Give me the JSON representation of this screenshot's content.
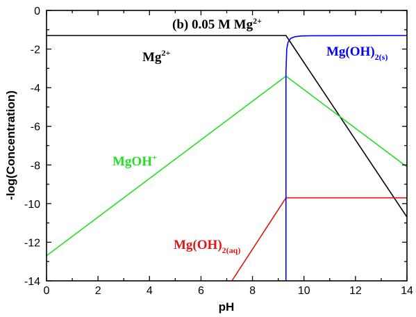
{
  "chart_data": {
    "type": "line",
    "title_parts": {
      "prefix": "(b) 0.05 M Mg",
      "superscript": "2+"
    },
    "xlabel": "pH",
    "ylabel": "-log(Concentration)",
    "xlim": [
      0,
      14
    ],
    "ylim": [
      -14,
      0
    ],
    "xticks": [
      0,
      2,
      4,
      6,
      8,
      10,
      12,
      14
    ],
    "yticks": [
      0,
      -2,
      -4,
      -6,
      -8,
      -10,
      -12,
      -14
    ],
    "grid": false,
    "colors": {
      "mg2": "#000000",
      "mgoh": "#22e022",
      "mgoh2aq": "#e01414",
      "mgoh2s": "#0000ff"
    },
    "series": [
      {
        "key": "mg2",
        "x": [
          0,
          9.25,
          9.3,
          14
        ],
        "y": [
          -1.3,
          -1.3,
          -1.3,
          -10.7
        ]
      },
      {
        "key": "mgoh",
        "x": [
          0,
          9.3,
          14
        ],
        "y": [
          -12.7,
          -3.4,
          -8.1
        ]
      },
      {
        "key": "mgoh2aq",
        "x": [
          7.2,
          9.3,
          14
        ],
        "y": [
          -14,
          -9.7,
          -9.7
        ]
      },
      {
        "key": "mgoh2s",
        "x": [
          9.3,
          9.3,
          9.33,
          9.38,
          9.48,
          9.65,
          9.9,
          10.3,
          14
        ],
        "y": [
          -14,
          -3.2,
          -2.0,
          -1.65,
          -1.45,
          -1.36,
          -1.32,
          -1.31,
          -1.3
        ]
      }
    ],
    "annotations": [
      {
        "key": "mg2",
        "base": "Mg",
        "sup": "2+",
        "sub": ""
      },
      {
        "key": "mgoh",
        "base": "MgOH",
        "sup": "+",
        "sub": ""
      },
      {
        "key": "mgoh2aq",
        "base": "Mg(OH)",
        "sup": "",
        "sub": "2(aq)"
      },
      {
        "key": "mgoh2s",
        "base": "Mg(OH)",
        "sup": "",
        "sub": "2(s)"
      }
    ]
  }
}
